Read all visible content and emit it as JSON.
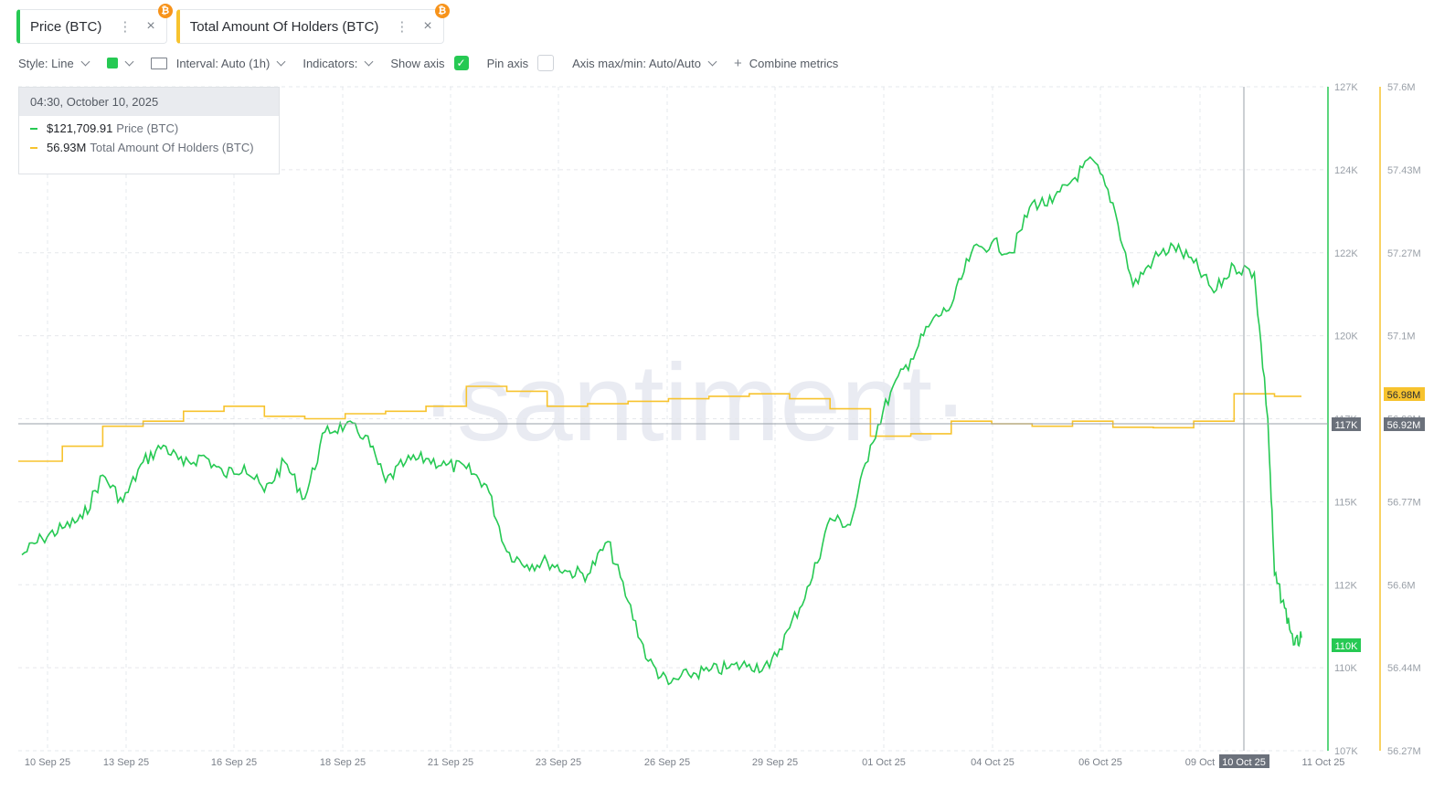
{
  "tabs": [
    {
      "label": "Price (BTC)",
      "badge": "₿",
      "color": "#26c953"
    },
    {
      "label": "Total Amount Of Holders (BTC)",
      "badge": "₿",
      "color": "#f7c32e"
    }
  ],
  "toolbar": {
    "style_label": "Style: Line",
    "color_swatch": "#26c953",
    "interval_label": "Interval: Auto (1h)",
    "indicators_label": "Indicators:",
    "show_axis_label": "Show axis",
    "show_axis_checked": true,
    "pin_axis_label": "Pin axis",
    "pin_axis_checked": false,
    "axis_maxmin_label": "Axis max/min: Auto/Auto",
    "combine_label": "Combine metrics"
  },
  "tooltip": {
    "date": "04:30, October 10, 2025",
    "price_value": "$121,709.91",
    "price_label": "Price (BTC)",
    "holders_value": "56.93M",
    "holders_label": "Total Amount Of Holders (BTC)"
  },
  "watermark": "·santiment·",
  "chart_data": {
    "type": "line",
    "x_ticks": [
      "10 Sep 25",
      "13 Sep 25",
      "16 Sep 25",
      "18 Sep 25",
      "21 Sep 25",
      "23 Sep 25",
      "26 Sep 25",
      "29 Sep 25",
      "01 Oct 25",
      "04 Oct 25",
      "06 Oct 25",
      "09 Oct",
      "11 Oct 25"
    ],
    "x_range": [
      "2025-09-10",
      "2025-10-11"
    ],
    "y_left_ticks": [
      "127K",
      "124K",
      "122K",
      "120K",
      "117K",
      "115K",
      "112K",
      "110K",
      "107K"
    ],
    "y_left_range": [
      107000,
      127000
    ],
    "y_right_ticks": [
      "57.6M",
      "57.43M",
      "57.27M",
      "57.1M",
      "56.93M",
      "56.77M",
      "56.6M",
      "56.44M",
      "56.27M"
    ],
    "y_right_range": [
      56270000,
      57600000
    ],
    "crosshair": {
      "x_label": "10 Oct 25",
      "y_label": "117K",
      "right_label": "56.92M"
    },
    "last_labels": {
      "price": "110K",
      "holders": "56.98M"
    },
    "series": [
      {
        "name": "Price (BTC)",
        "color": "#26c953",
        "axis": "left",
        "points": [
          [
            "2025-09-10",
            112900
          ],
          [
            "2025-09-10T12",
            113400
          ],
          [
            "2025-09-11",
            113700
          ],
          [
            "2025-09-11T12",
            114000
          ],
          [
            "2025-09-12",
            115300
          ],
          [
            "2025-09-12T12",
            114500
          ],
          [
            "2025-09-13",
            115700
          ],
          [
            "2025-09-13T12",
            116200
          ],
          [
            "2025-09-14",
            115600
          ],
          [
            "2025-09-14T12",
            115900
          ],
          [
            "2025-09-15",
            115300
          ],
          [
            "2025-09-15T12",
            115600
          ],
          [
            "2025-09-16",
            114800
          ],
          [
            "2025-09-16T12",
            115700
          ],
          [
            "2025-09-17",
            114600
          ],
          [
            "2025-09-17T12",
            116600
          ],
          [
            "2025-09-18",
            116800
          ],
          [
            "2025-09-18T12",
            116500
          ],
          [
            "2025-09-19",
            115100
          ],
          [
            "2025-09-19T12",
            115700
          ],
          [
            "2025-09-20",
            115800
          ],
          [
            "2025-09-20T12",
            115600
          ],
          [
            "2025-09-21",
            115500
          ],
          [
            "2025-09-21T12",
            115000
          ],
          [
            "2025-09-22",
            113000
          ],
          [
            "2025-09-22T12",
            112600
          ],
          [
            "2025-09-23",
            112700
          ],
          [
            "2025-09-23T12",
            112400
          ],
          [
            "2025-09-24",
            112300
          ],
          [
            "2025-09-24T12",
            113300
          ],
          [
            "2025-09-25",
            111500
          ],
          [
            "2025-09-25T12",
            109700
          ],
          [
            "2025-09-26",
            109000
          ],
          [
            "2025-09-26T12",
            109300
          ],
          [
            "2025-09-27",
            109400
          ],
          [
            "2025-09-27T12",
            109500
          ],
          [
            "2025-09-28",
            109600
          ],
          [
            "2025-09-28T12",
            109500
          ],
          [
            "2025-09-29",
            110700
          ],
          [
            "2025-09-29T12",
            112000
          ],
          [
            "2025-09-30",
            114000
          ],
          [
            "2025-09-30T12",
            113800
          ],
          [
            "2025-10-01",
            116200
          ],
          [
            "2025-10-01T12",
            117800
          ],
          [
            "2025-10-02",
            118800
          ],
          [
            "2025-10-02T12",
            119900
          ],
          [
            "2025-10-03",
            120400
          ],
          [
            "2025-10-03T12",
            122000
          ],
          [
            "2025-10-04",
            122300
          ],
          [
            "2025-10-04T12",
            122000
          ],
          [
            "2025-10-05",
            123500
          ],
          [
            "2025-10-05T12",
            123500
          ],
          [
            "2025-10-06",
            124200
          ],
          [
            "2025-10-06T12",
            124800
          ],
          [
            "2025-10-07",
            123500
          ],
          [
            "2025-10-07T12",
            121000
          ],
          [
            "2025-10-08",
            121800
          ],
          [
            "2025-10-08T12",
            122200
          ],
          [
            "2025-10-09",
            121700
          ],
          [
            "2025-10-09T12",
            120800
          ],
          [
            "2025-10-10",
            121600
          ],
          [
            "2025-10-10T12",
            121400
          ],
          [
            "2025-10-10T20",
            117000
          ],
          [
            "2025-10-11T00",
            112300
          ],
          [
            "2025-10-11T06",
            111300
          ],
          [
            "2025-10-11T12",
            110200
          ],
          [
            "2025-10-11T16",
            110400
          ]
        ]
      },
      {
        "name": "Total Amount Of Holders (BTC)",
        "color": "#f7c32e",
        "axis": "right",
        "points": [
          [
            "2025-09-10",
            56850000
          ],
          [
            "2025-09-11",
            56880000
          ],
          [
            "2025-09-12",
            56920000
          ],
          [
            "2025-09-13",
            56930000
          ],
          [
            "2025-09-14",
            56950000
          ],
          [
            "2025-09-15",
            56960000
          ],
          [
            "2025-09-16",
            56940000
          ],
          [
            "2025-09-17",
            56935000
          ],
          [
            "2025-09-18",
            56945000
          ],
          [
            "2025-09-19",
            56950000
          ],
          [
            "2025-09-20",
            56960000
          ],
          [
            "2025-09-21",
            57000000
          ],
          [
            "2025-09-22",
            56990000
          ],
          [
            "2025-09-23",
            56960000
          ],
          [
            "2025-09-24",
            56965000
          ],
          [
            "2025-09-25",
            56970000
          ],
          [
            "2025-09-26",
            56975000
          ],
          [
            "2025-09-27",
            56980000
          ],
          [
            "2025-09-28",
            56985000
          ],
          [
            "2025-09-29",
            56975000
          ],
          [
            "2025-09-30",
            56955000
          ],
          [
            "2025-10-01",
            56900000
          ],
          [
            "2025-10-02",
            56905000
          ],
          [
            "2025-10-03",
            56930000
          ],
          [
            "2025-10-04",
            56925000
          ],
          [
            "2025-10-05",
            56920000
          ],
          [
            "2025-10-06",
            56930000
          ],
          [
            "2025-10-07",
            56918000
          ],
          [
            "2025-10-08",
            56917000
          ],
          [
            "2025-10-09",
            56930000
          ],
          [
            "2025-10-10",
            56985000
          ],
          [
            "2025-10-11",
            56980000
          ]
        ]
      }
    ]
  }
}
